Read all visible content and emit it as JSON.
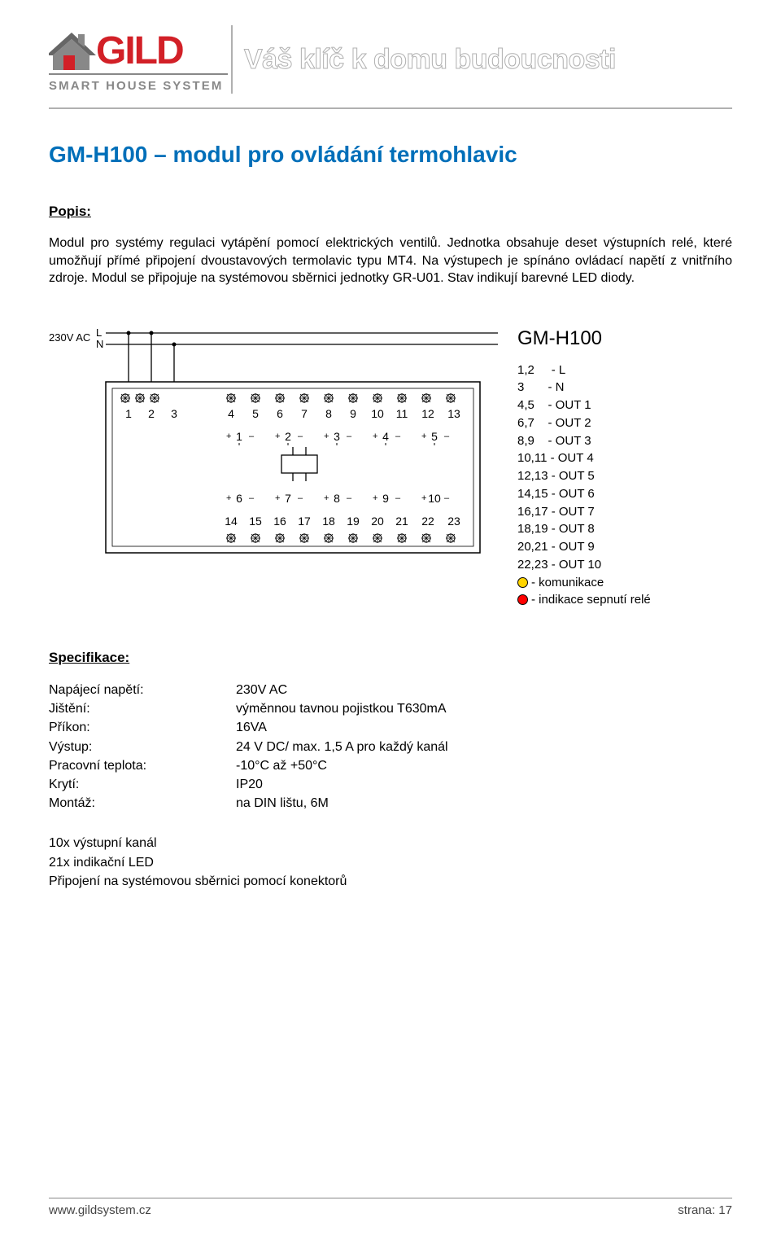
{
  "header": {
    "logo_main": "GILD",
    "logo_sub": "SMART HOUSE SYSTEM",
    "slogan": "Váš klíč k domu budoucnosti"
  },
  "title": "GM-H100 – modul pro ovládání termohlavic",
  "popis_label": "Popis:",
  "popis_text": "Modul pro systémy regulaci vytápění pomocí elektrických ventilů. Jednotka obsahuje deset výstupních relé, které umožňují přímé připojení dvoustavových termolavic typu MT4. Na výstupech je spínáno ovládací napětí z vnitřního zdroje. Modul se připojuje na systémovou sběrnici jednotky GR-U01. Stav indikují barevné LED diody.",
  "diagram": {
    "supply_label": "230V AC",
    "L": "L",
    "N": "N",
    "top_terminals": [
      "1",
      "2",
      "3",
      "4",
      "5",
      "6",
      "7",
      "8",
      "9",
      "10",
      "11",
      "12",
      "13"
    ],
    "bot_terminals": [
      "14",
      "15",
      "16",
      "17",
      "18",
      "19",
      "20",
      "21",
      "22",
      "23"
    ],
    "ch_top": [
      "1",
      "2",
      "3",
      "4",
      "5"
    ],
    "ch_bot": [
      "6",
      "7",
      "8",
      "9",
      "10"
    ],
    "legend_title": "GM-H100",
    "legend": [
      "1,2     - L",
      "3       - N",
      "4,5    - OUT 1",
      "6,7    - OUT 2",
      "8,9    - OUT 3",
      "10,11 - OUT 4",
      "12,13 - OUT 5",
      "14,15 - OUT 6",
      "16,17 - OUT 7",
      "18,19 - OUT 8",
      "20,21 - OUT 9",
      "22,23 - OUT 10"
    ],
    "led1": "- komunikace",
    "led2": "- indikace sepnutí relé"
  },
  "spec_label": "Specifikace:",
  "specs": [
    {
      "k": "Napájecí napětí:",
      "v": "230V AC"
    },
    {
      "k": "Jištění:",
      "v": "výměnnou tavnou pojistkou T630mA"
    },
    {
      "k": "Příkon:",
      "v": "16VA"
    },
    {
      "k": "Výstup:",
      "v": "24 V DC/ max. 1,5 A pro každý kanál"
    },
    {
      "k": "Pracovní teplota:",
      "v": "-10°C až +50°C"
    },
    {
      "k": "Krytí:",
      "v": "IP20"
    },
    {
      "k": "Montáž:",
      "v": "na DIN lištu, 6M"
    }
  ],
  "extras": [
    "10x výstupní kanál",
    "21x indikační LED",
    "Připojení na systémovou sběrnici pomocí konektorů"
  ],
  "footer": {
    "url": "www.gildsystem.cz",
    "page": "strana: 17"
  },
  "colors": {
    "blue": "#006fb9",
    "grey": "#b0b0b0",
    "red": "#d22027",
    "yellow": "#ffd400"
  }
}
